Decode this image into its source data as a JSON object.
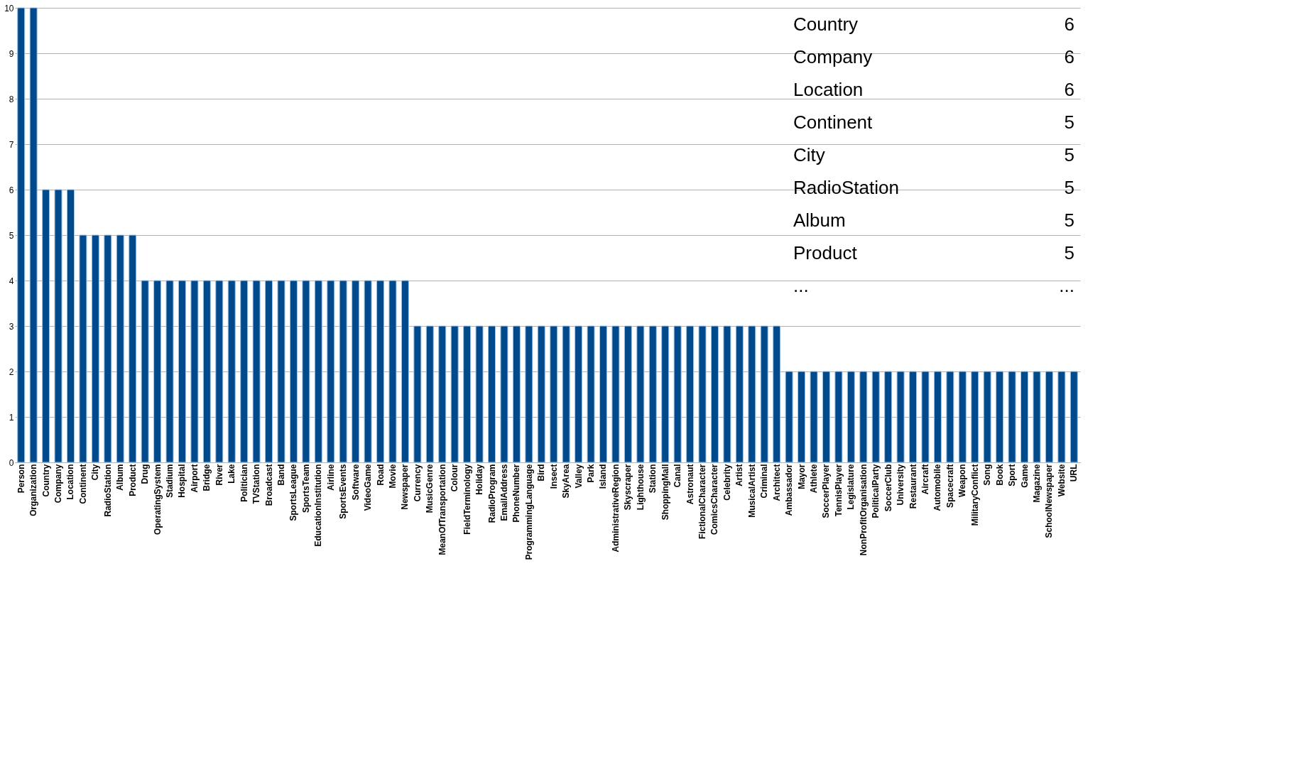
{
  "chart_data": {
    "type": "bar",
    "categories": [
      "Person",
      "Organization",
      "Country",
      "Company",
      "Location",
      "Continent",
      "City",
      "RadioStation",
      "Album",
      "Product",
      "Drug",
      "OperatingSystem",
      "Stadium",
      "Hospital",
      "Airport",
      "Bridge",
      "River",
      "Lake",
      "Politician",
      "TVStation",
      "Broadcast",
      "Band",
      "SportsLeague",
      "SportsTeam",
      "EducationInstitution",
      "Airline",
      "SportsEvents",
      "Software",
      "VideoGame",
      "Road",
      "Movie",
      "Newspaper",
      "Currency",
      "MusicGenre",
      "MeanOfTransportation",
      "Colour",
      "FieldTerminology",
      "Holiday",
      "RadioProgram",
      "EmailAddress",
      "PhoneNumber",
      "ProgrammingLanguage",
      "Bird",
      "Insect",
      "SkyArea",
      "Valley",
      "Park",
      "Island",
      "AdministrativeRegion",
      "Skyscraper",
      "Lighthouse",
      "Station",
      "ShoppingMall",
      "Canal",
      "Astronaut",
      "FictionalCharacter",
      "ComicsCharacter",
      "Celebrity",
      "Artist",
      "MusicalArtist",
      "Criminal",
      "Architect",
      "Ambassador",
      "Mayor",
      "Athlete",
      "SoccerPlayer",
      "TennisPlayer",
      "Legislature",
      "NonProfitOrganisation",
      "PoliticalParty",
      "SoccerClub",
      "University",
      "Restaurant",
      "Aircraft",
      "Automobile",
      "Spacecraft",
      "Weapon",
      "MilitaryConflict",
      "Song",
      "Book",
      "Sport",
      "Game",
      "Magazine",
      "SchoolNewspaper",
      "Website",
      "URL"
    ],
    "values": [
      10,
      10,
      6,
      6,
      6,
      5,
      5,
      5,
      5,
      5,
      4,
      4,
      4,
      4,
      4,
      4,
      4,
      4,
      4,
      4,
      4,
      4,
      4,
      4,
      4,
      4,
      4,
      4,
      4,
      4,
      4,
      4,
      3,
      3,
      3,
      3,
      3,
      3,
      3,
      3,
      3,
      3,
      3,
      3,
      3,
      3,
      3,
      3,
      3,
      3,
      3,
      3,
      3,
      3,
      3,
      3,
      3,
      3,
      3,
      3,
      3,
      3,
      2,
      2,
      2,
      2,
      2,
      2,
      2,
      2,
      2,
      2,
      2,
      2,
      2,
      2,
      2,
      2,
      2,
      2,
      2,
      2,
      2,
      2,
      2,
      2
    ],
    "color": "#004a8c",
    "ylim": [
      0,
      10
    ],
    "yticks": [
      0,
      1,
      2,
      3,
      4,
      5,
      6,
      7,
      8,
      9,
      10
    ],
    "grid": "y",
    "annotations": [
      "Country",
      "6",
      "Company",
      "6",
      "Location",
      "6",
      "Continent",
      "5",
      "City",
      "5",
      "RadioStation",
      "5",
      "Album",
      "5",
      "Product",
      "5",
      "...",
      "..."
    ]
  }
}
